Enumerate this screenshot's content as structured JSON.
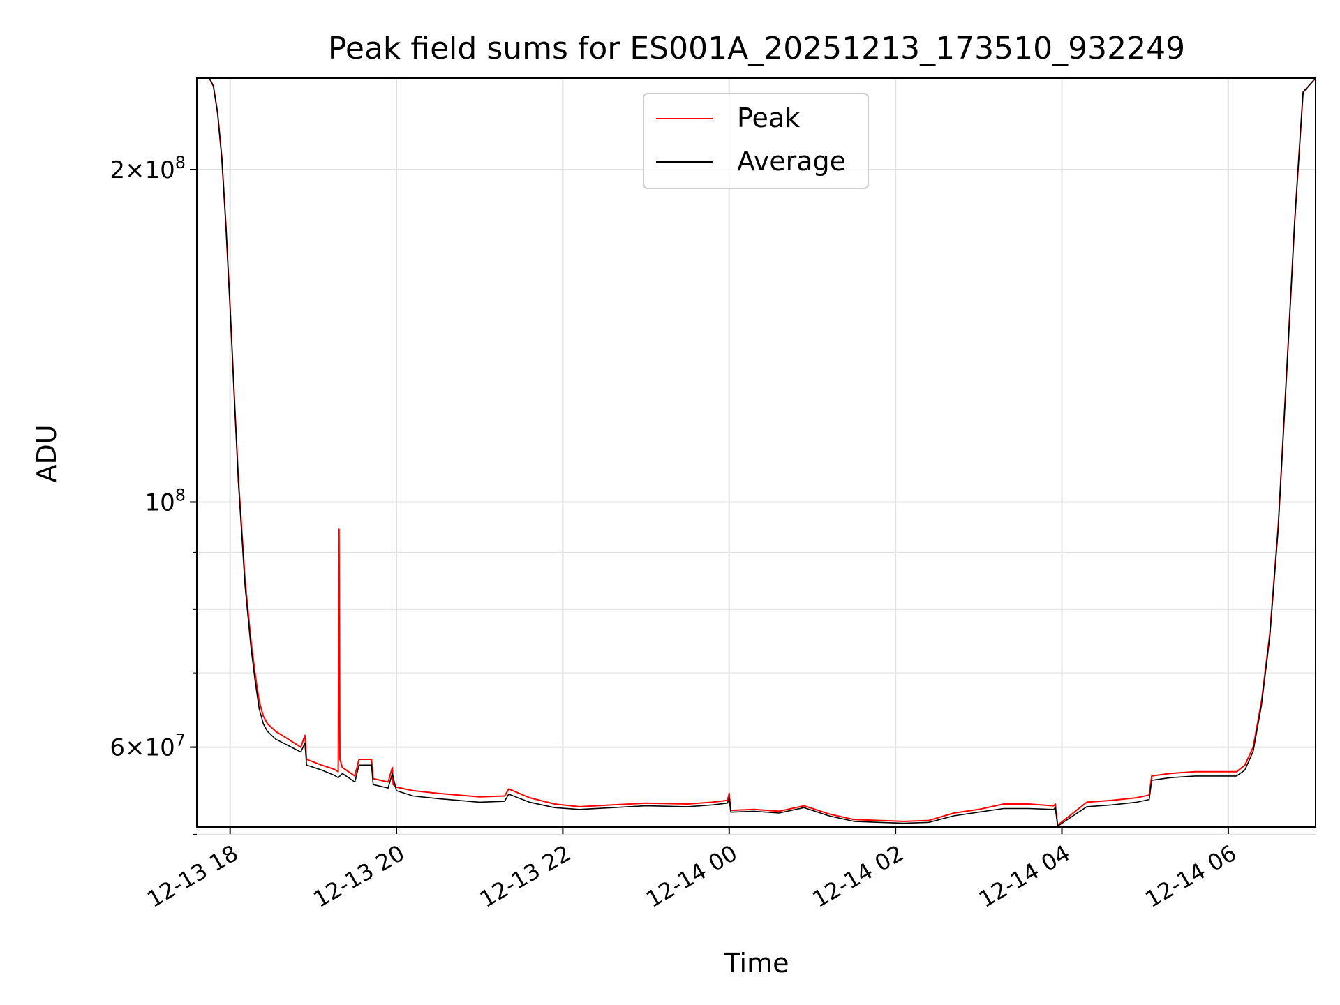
{
  "colors": {
    "peak": "#ff0000",
    "average": "#000000",
    "grid": "#e0e0e0",
    "axis": "#000000"
  },
  "chart_data": {
    "type": "line",
    "title": "Peak field sums for ES001A_20251213_173510_932249",
    "xlabel": "Time",
    "ylabel": "ADU",
    "y_scale": "log",
    "xlim": [
      17.6,
      31.05
    ],
    "ylim": [
      50800000,
      242000000
    ],
    "grid": true,
    "legend_position": "top-center",
    "x_ticks": [
      {
        "value": 18,
        "label": "12-13 18"
      },
      {
        "value": 20,
        "label": "12-13 20"
      },
      {
        "value": 22,
        "label": "12-13 22"
      },
      {
        "value": 24,
        "label": "12-14 00"
      },
      {
        "value": 26,
        "label": "12-14 02"
      },
      {
        "value": 28,
        "label": "12-14 04"
      },
      {
        "value": 30,
        "label": "12-14 06"
      }
    ],
    "y_major_ticks": [
      {
        "value": 60000000,
        "mantissa": "6",
        "exponent": "7"
      },
      {
        "value": 100000000,
        "mantissa": "",
        "exponent": "8"
      },
      {
        "value": 200000000,
        "mantissa": "2",
        "exponent": "8"
      }
    ],
    "y_minor_ticks": [
      50000000,
      60000000,
      70000000,
      80000000,
      90000000,
      100000000,
      200000000
    ],
    "series": [
      {
        "name": "Peak",
        "x": [
          17.6,
          17.75,
          17.8,
          17.85,
          17.9,
          17.95,
          18.0,
          18.05,
          18.1,
          18.15,
          18.18,
          18.25,
          18.3,
          18.35,
          18.4,
          18.45,
          18.55,
          18.7,
          18.85,
          18.9,
          18.92,
          19.1,
          19.25,
          19.3,
          19.31,
          19.32,
          19.35,
          19.5,
          19.55,
          19.7,
          19.72,
          19.9,
          19.95,
          19.96,
          20.0,
          20.2,
          20.5,
          21.0,
          21.3,
          21.35,
          21.6,
          21.9,
          22.2,
          22.6,
          23.0,
          23.5,
          23.8,
          23.98,
          24.0,
          24.02,
          24.3,
          24.6,
          24.9,
          25.2,
          25.5,
          25.8,
          26.1,
          26.4,
          26.7,
          27.0,
          27.3,
          27.6,
          27.9,
          27.92,
          27.95,
          28.3,
          28.6,
          28.9,
          29.05,
          29.08,
          29.3,
          29.6,
          29.9,
          30.1,
          30.2,
          30.3,
          30.4,
          30.5,
          30.6,
          30.7,
          30.8,
          30.9,
          31.05
        ],
        "values": [
          242000000,
          242000000,
          238000000,
          225000000,
          205000000,
          178000000,
          150000000,
          125000000,
          105000000,
          92000000,
          85000000,
          75000000,
          70000000,
          66000000,
          64000000,
          63000000,
          62000000,
          61000000,
          60000000,
          61500000,
          58500000,
          57800000,
          57300000,
          57000000,
          94500000,
          58500000,
          57500000,
          56500000,
          58500000,
          58500000,
          56200000,
          55800000,
          57500000,
          55500000,
          55200000,
          54800000,
          54500000,
          54100000,
          54200000,
          55000000,
          54000000,
          53300000,
          53000000,
          53200000,
          53400000,
          53300000,
          53500000,
          53700000,
          54500000,
          52600000,
          52700000,
          52500000,
          53100000,
          52200000,
          51600000,
          51500000,
          51400000,
          51500000,
          52300000,
          52700000,
          53300000,
          53300000,
          53100000,
          53300000,
          51000000,
          53500000,
          53700000,
          54000000,
          54300000,
          56500000,
          56800000,
          57000000,
          57000000,
          57000000,
          57800000,
          60000000,
          66000000,
          76000000,
          95000000,
          130000000,
          180000000,
          235000000,
          242000000
        ]
      },
      {
        "name": "Average",
        "x": [
          17.6,
          17.75,
          17.8,
          17.85,
          17.9,
          17.95,
          18.0,
          18.05,
          18.1,
          18.15,
          18.18,
          18.25,
          18.3,
          18.35,
          18.4,
          18.45,
          18.55,
          18.7,
          18.85,
          18.9,
          18.92,
          19.1,
          19.25,
          19.3,
          19.35,
          19.5,
          19.55,
          19.7,
          19.72,
          19.9,
          19.95,
          20.0,
          20.2,
          20.5,
          21.0,
          21.3,
          21.35,
          21.6,
          21.9,
          22.2,
          22.6,
          23.0,
          23.5,
          23.8,
          23.98,
          24.0,
          24.02,
          24.3,
          24.6,
          24.9,
          25.2,
          25.5,
          25.8,
          26.1,
          26.4,
          26.7,
          27.0,
          27.3,
          27.6,
          27.9,
          27.92,
          27.95,
          28.3,
          28.6,
          28.9,
          29.05,
          29.08,
          29.3,
          29.6,
          29.9,
          30.1,
          30.2,
          30.3,
          30.4,
          30.5,
          30.6,
          30.7,
          30.8,
          30.9,
          31.05
        ],
        "values": [
          242000000,
          242000000,
          238000000,
          225000000,
          205000000,
          178000000,
          150000000,
          125000000,
          104000000,
          91000000,
          84000000,
          74000000,
          69000000,
          65000000,
          63000000,
          62000000,
          61000000,
          60200000,
          59400000,
          60500000,
          57800000,
          57200000,
          56600000,
          56300000,
          56800000,
          55800000,
          57800000,
          57800000,
          55500000,
          55100000,
          56800000,
          54800000,
          54200000,
          53900000,
          53500000,
          53600000,
          54400000,
          53500000,
          52900000,
          52700000,
          52900000,
          53100000,
          53000000,
          53200000,
          53400000,
          54000000,
          52400000,
          52500000,
          52300000,
          52900000,
          52000000,
          51400000,
          51300000,
          51200000,
          51300000,
          52000000,
          52400000,
          52800000,
          52800000,
          52700000,
          52900000,
          50900000,
          53000000,
          53200000,
          53500000,
          53800000,
          56000000,
          56300000,
          56500000,
          56500000,
          56500000,
          57200000,
          59500000,
          65500000,
          75500000,
          94500000,
          130000000,
          180000000,
          235000000,
          242000000
        ]
      }
    ]
  }
}
